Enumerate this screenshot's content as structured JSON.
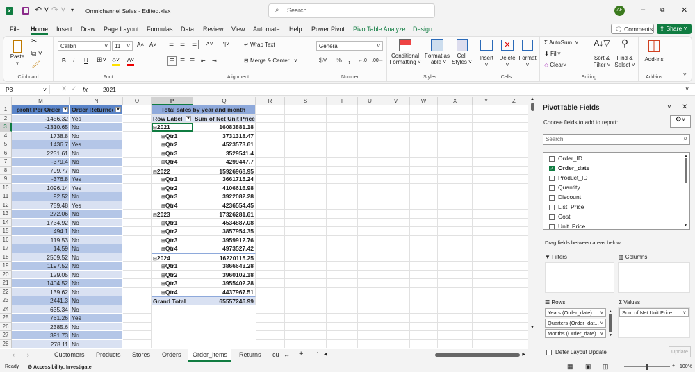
{
  "title_bar": {
    "file_name": "Omnichannel Sales - Edited.xlsx",
    "search_placeholder": "Search",
    "avatar": "AF"
  },
  "menu": {
    "tabs": [
      "File",
      "Home",
      "Insert",
      "Draw",
      "Page Layout",
      "Formulas",
      "Data",
      "Review",
      "View",
      "Automate",
      "Help",
      "Power Pivot",
      "PivotTable Analyze",
      "Design"
    ],
    "active": "Home",
    "comments": "Comments",
    "share": "Share"
  },
  "ribbon": {
    "clipboard": {
      "paste": "Paste",
      "label": "Clipboard"
    },
    "font": {
      "name": "Calibri",
      "size": "11",
      "label": "Font",
      "bold": "B",
      "italic": "I",
      "underline": "U"
    },
    "alignment": {
      "wrap": "Wrap Text",
      "merge": "Merge & Center",
      "label": "Alignment"
    },
    "number": {
      "format": "General",
      "label": "Number",
      "currency": "$",
      "percent": "%",
      "comma": ","
    },
    "styles": {
      "conditional": "Conditional Formatting",
      "format_table": "Format as Table",
      "cell_styles": "Cell Styles",
      "label": "Styles"
    },
    "cells": {
      "insert": "Insert",
      "delete": "Delete",
      "format": "Format",
      "label": "Cells"
    },
    "editing": {
      "autosum": "AutoSum",
      "fill": "Fill",
      "clear": "Clear",
      "sort": "Sort & Filter",
      "find": "Find & Select",
      "label": "Editing"
    },
    "addins": {
      "addins": "Add-ins",
      "label": "Add-ins"
    }
  },
  "formula_bar": {
    "name_box": "P3",
    "fx": "fx",
    "formula": "2021"
  },
  "columns": [
    "M",
    "N",
    "O",
    "P",
    "Q",
    "R",
    "S",
    "T",
    "U",
    "V",
    "W",
    "X",
    "Y",
    "Z"
  ],
  "table": {
    "headers": [
      "profit Per Order",
      "Order Returned"
    ],
    "rows": [
      [
        "-1456.32",
        "Yes"
      ],
      [
        "-1310.65",
        "No"
      ],
      [
        "1738.8",
        "No"
      ],
      [
        "1436.7",
        "Yes"
      ],
      [
        "2231.61",
        "No"
      ],
      [
        "-379.4",
        "No"
      ],
      [
        "799.77",
        "No"
      ],
      [
        "-376.8",
        "Yes"
      ],
      [
        "1096.14",
        "Yes"
      ],
      [
        "92.52",
        "No"
      ],
      [
        "759.48",
        "Yes"
      ],
      [
        "272.06",
        "No"
      ],
      [
        "1734.92",
        "No"
      ],
      [
        "494.1",
        "No"
      ],
      [
        "119.53",
        "No"
      ],
      [
        "14.59",
        "No"
      ],
      [
        "2509.52",
        "No"
      ],
      [
        "1197.52",
        "No"
      ],
      [
        "129.05",
        "No"
      ],
      [
        "1404.52",
        "No"
      ],
      [
        "139.62",
        "No"
      ],
      [
        "2441.3",
        "No"
      ],
      [
        "635.34",
        "No"
      ],
      [
        "761.26",
        "Yes"
      ],
      [
        "2385.6",
        "No"
      ],
      [
        "391.73",
        "No"
      ],
      [
        "278.11",
        "No"
      ]
    ]
  },
  "pivot": {
    "title": "Total sales by year and month",
    "row_labels": "Row Labels",
    "value_header": "Sum of Net Unit Price",
    "rows": [
      {
        "label": "2021",
        "value": "16083881.18",
        "level": 0
      },
      {
        "label": "Qtr1",
        "value": "3731318.47",
        "level": 1
      },
      {
        "label": "Qtr2",
        "value": "4523573.61",
        "level": 1
      },
      {
        "label": "Qtr3",
        "value": "3529541.4",
        "level": 1
      },
      {
        "label": "Qtr4",
        "value": "4299447.7",
        "level": 1
      },
      {
        "label": "2022",
        "value": "15926968.95",
        "level": 0
      },
      {
        "label": "Qtr1",
        "value": "3661715.24",
        "level": 1
      },
      {
        "label": "Qtr2",
        "value": "4106616.98",
        "level": 1
      },
      {
        "label": "Qtr3",
        "value": "3922082.28",
        "level": 1
      },
      {
        "label": "Qtr4",
        "value": "4236554.45",
        "level": 1
      },
      {
        "label": "2023",
        "value": "17326281.61",
        "level": 0
      },
      {
        "label": "Qtr1",
        "value": "4534887.08",
        "level": 1
      },
      {
        "label": "Qtr2",
        "value": "3857954.35",
        "level": 1
      },
      {
        "label": "Qtr3",
        "value": "3959912.76",
        "level": 1
      },
      {
        "label": "Qtr4",
        "value": "4973527.42",
        "level": 1
      },
      {
        "label": "2024",
        "value": "16220115.25",
        "level": 0
      },
      {
        "label": "Qtr1",
        "value": "3866643.28",
        "level": 1
      },
      {
        "label": "Qtr2",
        "value": "3960102.18",
        "level": 1
      },
      {
        "label": "Qtr3",
        "value": "3955402.28",
        "level": 1
      },
      {
        "label": "Qtr4",
        "value": "4437967.51",
        "level": 1
      }
    ],
    "grand_total_label": "Grand Total",
    "grand_total": "65557246.99"
  },
  "sheet_tabs": [
    "Customers",
    "Products",
    "Stores",
    "Orders",
    "Order_Items",
    "Returns",
    "cu"
  ],
  "active_sheet": "Order_Items",
  "status": {
    "ready": "Ready",
    "accessibility": "Accessibility: Investigate",
    "zoom": "100%"
  },
  "pivot_pane": {
    "title": "PivotTable Fields",
    "subtitle": "Choose fields to add to report:",
    "search_placeholder": "Search",
    "fields": [
      {
        "name": "Order_ID",
        "checked": false
      },
      {
        "name": "Order_date",
        "checked": true
      },
      {
        "name": "Product_ID",
        "checked": false
      },
      {
        "name": "Quantity",
        "checked": false
      },
      {
        "name": "Discount",
        "checked": false
      },
      {
        "name": "List_Price",
        "checked": false
      },
      {
        "name": "Cost",
        "checked": false
      },
      {
        "name": "Unit_Price",
        "checked": false
      }
    ],
    "drag_label": "Drag fields between areas below:",
    "filters": "Filters",
    "columns": "Columns",
    "rows": "Rows",
    "values": "Values",
    "row_fields": [
      "Years (Order_date)",
      "Quarters (Order_dat...",
      "Months (Order_date)"
    ],
    "value_fields": [
      "Sum of Net Unit Price"
    ],
    "defer": "Defer Layout Update",
    "update": "Update"
  },
  "colors": {
    "accent": "#107c41",
    "table_header": "#5b85c9",
    "band_dark": "#b4c6e7",
    "band_light": "#d9e1f2"
  }
}
